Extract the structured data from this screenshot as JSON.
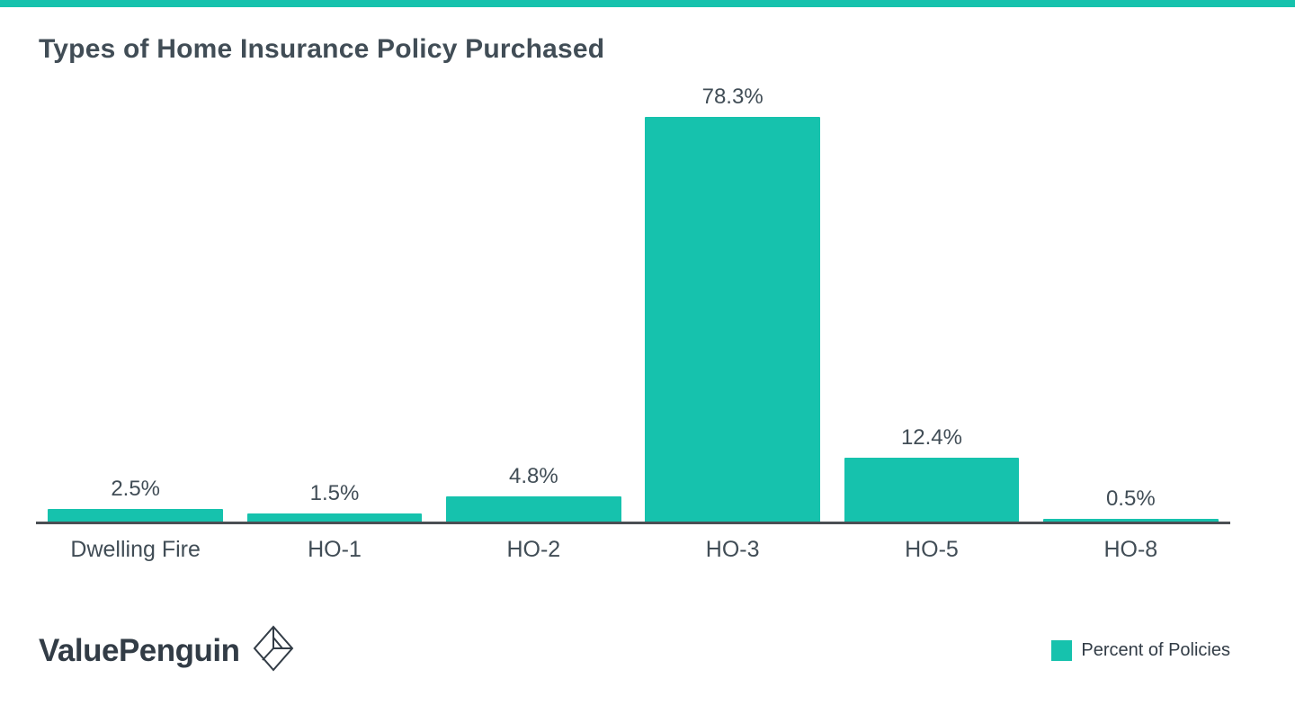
{
  "title": "Types of Home Insurance Policy Purchased",
  "brand": {
    "name": "ValuePenguin"
  },
  "legend": {
    "label": "Percent of Policies"
  },
  "colors": {
    "bar": "#16c2ad",
    "axis": "#4a4f54",
    "text": "#414d56",
    "accent_strip": "#16c2ad"
  },
  "chart_data": {
    "type": "bar",
    "title": "Types of Home Insurance Policy Purchased",
    "categories": [
      "Dwelling Fire",
      "HO-1",
      "HO-2",
      "HO-3",
      "HO-5",
      "HO-8"
    ],
    "values": [
      2.5,
      1.5,
      4.8,
      78.3,
      12.4,
      0.5
    ],
    "value_labels": [
      "2.5%",
      "1.5%",
      "4.8%",
      "78.3%",
      "12.4%",
      "0.5%"
    ],
    "series_name": "Percent of Policies",
    "xlabel": "",
    "ylabel": "",
    "ylim": [
      0,
      85
    ],
    "grid": false,
    "legend_position": "bottom-right"
  }
}
